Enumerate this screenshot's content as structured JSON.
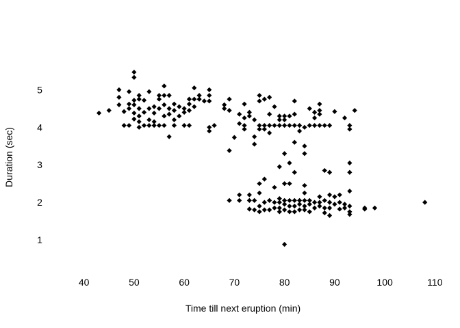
{
  "chart_data": {
    "type": "scatter",
    "title": "",
    "xlabel": "Time till next eruption (min)",
    "ylabel": "Duration (sec)",
    "xlim": [
      35,
      112
    ],
    "ylim": [
      0.2,
      6.3
    ],
    "x_ticks": [
      40,
      50,
      60,
      70,
      80,
      90,
      100,
      110
    ],
    "y_ticks": [
      1,
      2,
      3,
      4,
      5
    ],
    "grid": false,
    "marker": "diamond",
    "marker_color": "#000000",
    "points": [
      [
        43,
        4.38
      ],
      [
        45,
        4.45
      ],
      [
        47,
        5.0
      ],
      [
        47,
        4.8
      ],
      [
        47,
        4.6
      ],
      [
        48,
        4.42
      ],
      [
        48,
        4.05
      ],
      [
        49,
        4.95
      ],
      [
        49,
        4.62
      ],
      [
        49,
        4.5
      ],
      [
        49,
        4.05
      ],
      [
        50,
        5.47
      ],
      [
        50,
        5.33
      ],
      [
        50,
        4.72
      ],
      [
        50,
        4.6
      ],
      [
        50,
        4.38
      ],
      [
        50,
        4.22
      ],
      [
        51,
        4.85
      ],
      [
        51,
        4.75
      ],
      [
        51,
        4.5
      ],
      [
        51,
        4.3
      ],
      [
        51,
        4.15
      ],
      [
        51,
        4.0
      ],
      [
        52,
        4.72
      ],
      [
        52,
        4.4
      ],
      [
        52,
        4.05
      ],
      [
        53,
        4.95
      ],
      [
        53,
        4.5
      ],
      [
        53,
        4.2
      ],
      [
        53,
        4.05
      ],
      [
        54,
        4.55
      ],
      [
        54,
        4.38
      ],
      [
        54,
        4.15
      ],
      [
        54,
        4.05
      ],
      [
        55,
        4.85
      ],
      [
        55,
        4.75
      ],
      [
        55,
        4.5
      ],
      [
        55,
        4.05
      ],
      [
        56,
        5.1
      ],
      [
        56,
        4.85
      ],
      [
        56,
        4.6
      ],
      [
        56,
        4.3
      ],
      [
        56,
        4.05
      ],
      [
        57,
        4.85
      ],
      [
        57,
        4.5
      ],
      [
        57,
        4.35
      ],
      [
        57,
        3.75
      ],
      [
        58,
        4.62
      ],
      [
        58,
        4.45
      ],
      [
        58,
        4.2
      ],
      [
        58,
        4.05
      ],
      [
        59,
        4.55
      ],
      [
        59,
        4.3
      ],
      [
        60,
        4.5
      ],
      [
        60,
        4.4
      ],
      [
        60,
        4.05
      ],
      [
        61,
        4.75
      ],
      [
        61,
        4.62
      ],
      [
        61,
        4.45
      ],
      [
        61,
        4.05
      ],
      [
        62,
        5.05
      ],
      [
        62,
        4.75
      ],
      [
        62,
        4.55
      ],
      [
        63,
        4.85
      ],
      [
        63,
        4.75
      ],
      [
        64,
        4.7
      ],
      [
        65,
        5.0
      ],
      [
        65,
        4.85
      ],
      [
        65,
        4.7
      ],
      [
        65,
        4.0
      ],
      [
        65,
        3.9
      ],
      [
        66,
        4.05
      ],
      [
        68,
        4.6
      ],
      [
        68,
        4.5
      ],
      [
        69,
        4.75
      ],
      [
        69,
        4.45
      ],
      [
        69,
        3.38
      ],
      [
        69,
        2.05
      ],
      [
        70,
        3.73
      ],
      [
        71,
        4.35
      ],
      [
        71,
        4.1
      ],
      [
        71,
        2.2
      ],
      [
        71,
        2.05
      ],
      [
        72,
        4.62
      ],
      [
        72,
        4.25
      ],
      [
        72,
        4.05
      ],
      [
        72,
        3.95
      ],
      [
        73,
        4.4
      ],
      [
        73,
        4.3
      ],
      [
        73,
        2.2
      ],
      [
        73,
        2.05
      ],
      [
        73,
        1.82
      ],
      [
        74,
        4.2
      ],
      [
        74,
        3.75
      ],
      [
        74,
        3.55
      ],
      [
        74,
        2.05
      ],
      [
        74,
        1.8
      ],
      [
        75,
        4.85
      ],
      [
        75,
        4.7
      ],
      [
        75,
        4.05
      ],
      [
        75,
        3.95
      ],
      [
        75,
        2.5
      ],
      [
        75,
        2.25
      ],
      [
        75,
        1.9
      ],
      [
        75,
        1.75
      ],
      [
        76,
        4.75
      ],
      [
        76,
        4.05
      ],
      [
        76,
        3.95
      ],
      [
        76,
        2.62
      ],
      [
        76,
        2.0
      ],
      [
        76,
        1.8
      ],
      [
        77,
        4.8
      ],
      [
        77,
        4.35
      ],
      [
        77,
        4.05
      ],
      [
        77,
        3.85
      ],
      [
        77,
        2.05
      ],
      [
        77,
        1.8
      ],
      [
        78,
        4.55
      ],
      [
        78,
        4.05
      ],
      [
        78,
        2.4
      ],
      [
        78,
        2.0
      ],
      [
        78,
        1.85
      ],
      [
        79,
        4.3
      ],
      [
        79,
        4.2
      ],
      [
        79,
        4.05
      ],
      [
        79,
        2.95
      ],
      [
        79,
        2.1
      ],
      [
        79,
        2.0
      ],
      [
        79,
        1.85
      ],
      [
        79,
        1.75
      ],
      [
        80,
        4.3
      ],
      [
        80,
        4.2
      ],
      [
        80,
        4.05
      ],
      [
        80,
        3.3
      ],
      [
        80,
        2.5
      ],
      [
        80,
        2.05
      ],
      [
        80,
        1.95
      ],
      [
        80,
        1.8
      ],
      [
        80,
        0.88
      ],
      [
        81,
        4.3
      ],
      [
        81,
        4.05
      ],
      [
        81,
        3.05
      ],
      [
        81,
        2.5
      ],
      [
        81,
        2.05
      ],
      [
        81,
        1.9
      ],
      [
        81,
        1.75
      ],
      [
        82,
        4.7
      ],
      [
        82,
        4.35
      ],
      [
        82,
        4.05
      ],
      [
        82,
        3.6
      ],
      [
        82,
        2.8
      ],
      [
        82,
        2.05
      ],
      [
        82,
        1.9
      ],
      [
        82,
        1.75
      ],
      [
        83,
        4.05
      ],
      [
        83,
        3.9
      ],
      [
        83,
        2.05
      ],
      [
        83,
        1.95
      ],
      [
        83,
        1.8
      ],
      [
        84,
        4.0
      ],
      [
        84,
        3.5
      ],
      [
        84,
        3.3
      ],
      [
        84,
        2.45
      ],
      [
        84,
        2.25
      ],
      [
        84,
        2.05
      ],
      [
        84,
        1.9
      ],
      [
        84,
        1.8
      ],
      [
        85,
        4.5
      ],
      [
        85,
        4.05
      ],
      [
        85,
        2.05
      ],
      [
        85,
        1.95
      ],
      [
        85,
        1.75
      ],
      [
        86,
        4.4
      ],
      [
        86,
        4.25
      ],
      [
        86,
        4.05
      ],
      [
        86,
        2.0
      ],
      [
        86,
        1.85
      ],
      [
        87,
        4.62
      ],
      [
        87,
        4.45
      ],
      [
        87,
        4.35
      ],
      [
        87,
        4.05
      ],
      [
        87,
        2.15
      ],
      [
        87,
        2.0
      ],
      [
        87,
        1.9
      ],
      [
        88,
        4.05
      ],
      [
        88,
        2.85
      ],
      [
        88,
        2.05
      ],
      [
        88,
        1.85
      ],
      [
        88,
        1.72
      ],
      [
        89,
        4.05
      ],
      [
        89,
        2.8
      ],
      [
        89,
        2.2
      ],
      [
        89,
        2.0
      ],
      [
        89,
        1.85
      ],
      [
        89,
        1.65
      ],
      [
        90,
        4.42
      ],
      [
        90,
        2.15
      ],
      [
        90,
        1.95
      ],
      [
        91,
        2.2
      ],
      [
        91,
        2.0
      ],
      [
        91,
        1.82
      ],
      [
        92,
        4.25
      ],
      [
        92,
        1.95
      ],
      [
        92,
        1.85
      ],
      [
        93,
        4.05
      ],
      [
        93,
        3.95
      ],
      [
        93,
        3.05
      ],
      [
        93,
        2.8
      ],
      [
        93,
        2.3
      ],
      [
        93,
        1.9
      ],
      [
        93,
        1.75
      ],
      [
        93,
        1.68
      ],
      [
        94,
        4.45
      ],
      [
        96,
        1.85
      ],
      [
        96,
        1.82
      ],
      [
        98,
        1.85
      ],
      [
        108,
        2.0
      ]
    ]
  }
}
